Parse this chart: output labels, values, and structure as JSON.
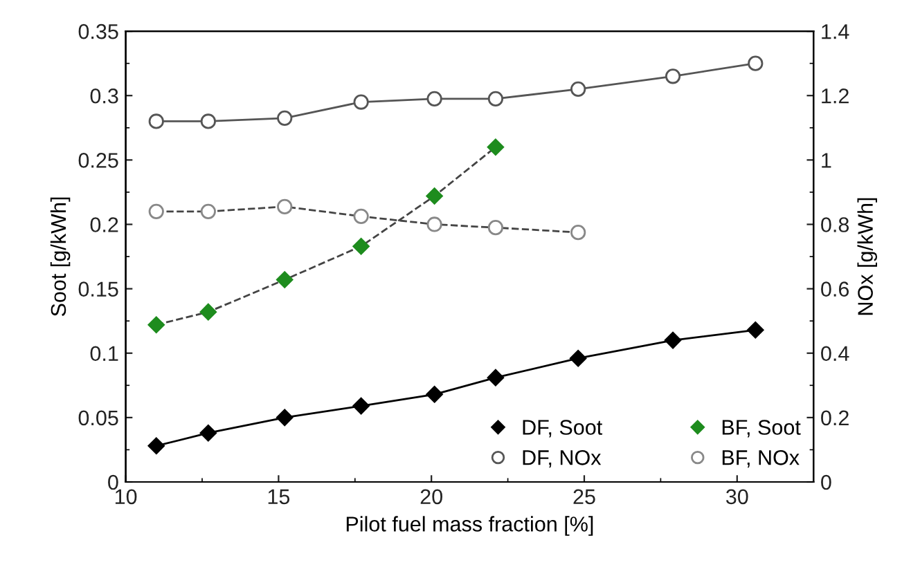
{
  "chart_data": {
    "type": "line",
    "xlabel": "Pilot fuel mass fraction [%]",
    "ylabel": "Soot [g/kWh]",
    "y2label": "NOx [g/kWh]",
    "xlim": [
      10,
      32.5
    ],
    "xticks": [
      10,
      15,
      20,
      25,
      30
    ],
    "ylim": [
      0,
      0.35
    ],
    "yticks": [
      0,
      0.05,
      0.1,
      0.15,
      0.2,
      0.25,
      0.3,
      0.35
    ],
    "y2lim": [
      0,
      1.4
    ],
    "y2ticks": [
      0,
      0.2,
      0.4,
      0.6,
      0.8,
      1,
      1.2,
      1.4
    ],
    "grid": false,
    "legend": "bottom right",
    "series": [
      {
        "name": "DF, Soot",
        "color": "#000000",
        "marker": "diamond",
        "line_style": "solid",
        "x": [
          11.0,
          12.7,
          15.2,
          17.7,
          20.1,
          22.1,
          24.8,
          27.9,
          30.6
        ],
        "values": [
          0.028,
          0.038,
          0.05,
          0.059,
          0.068,
          0.081,
          0.096,
          0.11,
          0.118
        ]
      },
      {
        "name": "BF, Soot",
        "color": "#1e8c1e",
        "marker": "diamond",
        "line_style": "dashed",
        "x": [
          11.0,
          12.7,
          15.2,
          17.7,
          20.1,
          22.1
        ],
        "values": [
          0.122,
          0.132,
          0.157,
          0.183,
          0.222,
          0.26
        ]
      },
      {
        "name": "DF, NOx",
        "color": "#555555",
        "marker": "circle",
        "line_style": "solid",
        "axis": "y2",
        "x": [
          11.0,
          12.7,
          15.2,
          17.7,
          20.1,
          22.1,
          24.8,
          27.9,
          30.6
        ],
        "values": [
          1.12,
          1.12,
          1.13,
          1.18,
          1.19,
          1.19,
          1.22,
          1.26,
          1.3
        ]
      },
      {
        "name": "BF, NOx",
        "color": "#888888",
        "marker": "circle",
        "line_style": "dashed",
        "axis": "y2",
        "x": [
          11.0,
          12.7,
          15.2,
          17.7,
          20.1,
          22.1,
          24.8
        ],
        "values": [
          0.84,
          0.84,
          0.855,
          0.825,
          0.8,
          0.79,
          0.775
        ]
      }
    ]
  }
}
